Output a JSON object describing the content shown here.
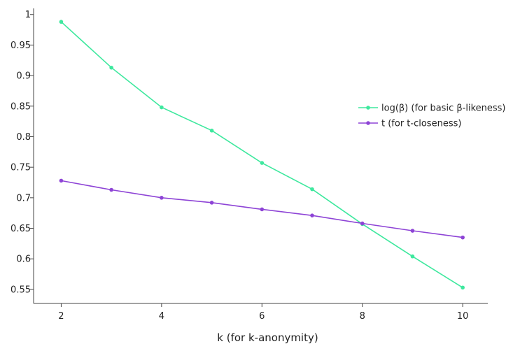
{
  "chart_data": {
    "type": "line",
    "title": "",
    "xlabel": "k (for k-anonymity)",
    "ylabel": "",
    "x": [
      2,
      3,
      4,
      5,
      6,
      7,
      8,
      9,
      10
    ],
    "xticks": [
      2,
      4,
      6,
      8,
      10
    ],
    "xlim": [
      1.45,
      10.5
    ],
    "ylim": [
      0.527,
      1.01
    ],
    "yticks": [
      0.55,
      0.6,
      0.65,
      0.7,
      0.75,
      0.8,
      0.85,
      0.9,
      0.95,
      1
    ],
    "ytick_labels": [
      "0.55",
      "0.6",
      "0.65",
      "0.7",
      "0.75",
      "0.8",
      "0.85",
      "0.9",
      "0.95",
      "1"
    ],
    "grid": false,
    "legend_position": "right",
    "series": [
      {
        "name": "log(β) (for basic β-likeness)",
        "color": "#3ee89e",
        "values": [
          0.988,
          0.913,
          0.848,
          0.81,
          0.757,
          0.714,
          0.657,
          0.604,
          0.553
        ]
      },
      {
        "name": "t (for t-closeness)",
        "color": "#8e44d6",
        "values": [
          0.728,
          0.713,
          0.7,
          0.692,
          0.681,
          0.671,
          0.658,
          0.646,
          0.635
        ]
      }
    ]
  }
}
